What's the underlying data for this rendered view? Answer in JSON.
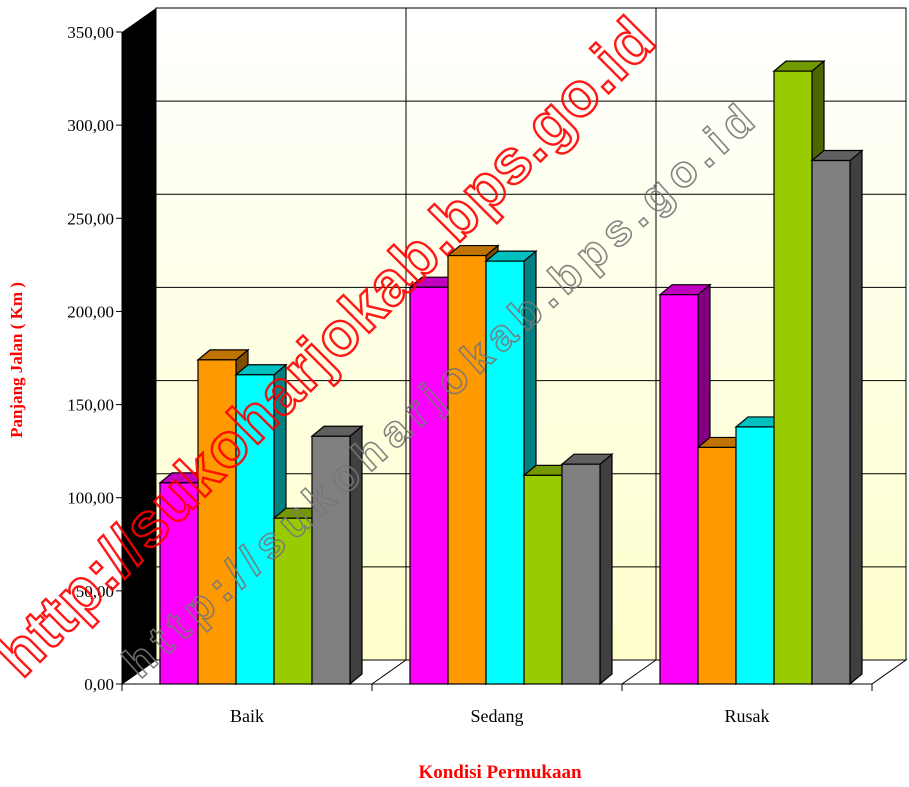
{
  "chart_data": {
    "type": "bar",
    "style": "3d-clustered-column",
    "categories": [
      "Baik",
      "Sedang",
      "Rusak"
    ],
    "series": [
      {
        "color": "#ff00ff",
        "values": [
          108,
          213,
          209
        ]
      },
      {
        "color": "#ff9900",
        "values": [
          174,
          230,
          127
        ]
      },
      {
        "color": "#00ffff",
        "values": [
          166,
          227,
          138
        ]
      },
      {
        "color": "#99cc00",
        "values": [
          89,
          112,
          329
        ]
      },
      {
        "color": "#808080",
        "values": [
          133,
          118,
          281
        ]
      }
    ],
    "xlabel": "Kondisi Permukaan",
    "ylabel": "Panjang Jalan ( Km )",
    "ylim": [
      0,
      350
    ],
    "ytick_values": [
      0,
      50,
      100,
      150,
      200,
      250,
      300,
      350
    ],
    "ytick_labels": [
      "0,00",
      "50,00",
      "100,00",
      "150,00",
      "200,00",
      "250,00",
      "300,00",
      "350,00"
    ],
    "grid": true,
    "legend": "none"
  },
  "watermark": {
    "primary": "http://sukoharjokab.bps.go.id",
    "secondary": "http://sukoharjokab.bps.go.id",
    "color": "#ff0000"
  }
}
